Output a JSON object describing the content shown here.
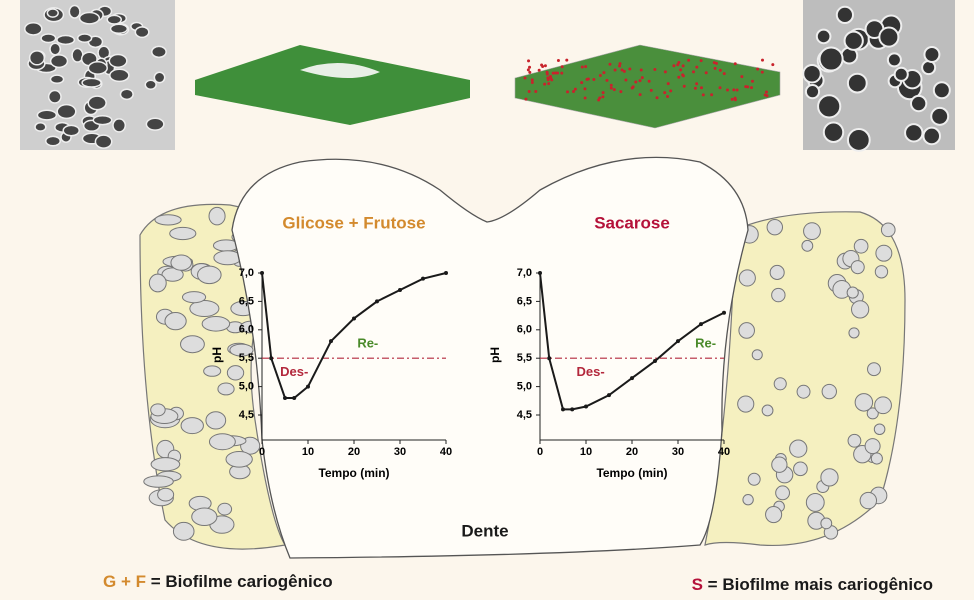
{
  "chart_data": [
    {
      "type": "line",
      "title": "Glicose + Frutose",
      "title_color": "#d38a2e",
      "x_label": "Tempo (min)",
      "y_label": "pH",
      "x": [
        0,
        2,
        5,
        7,
        10,
        15,
        20,
        25,
        30,
        35,
        40
      ],
      "series": [
        {
          "name": "pH",
          "color": "#1a1a1a",
          "values": [
            7.0,
            5.5,
            4.8,
            4.8,
            5.0,
            5.8,
            6.2,
            6.5,
            6.7,
            6.9,
            7.0
          ]
        }
      ],
      "xlim": [
        0,
        40
      ],
      "xticks": [
        0,
        10,
        20,
        30,
        40
      ],
      "ylim": [
        4.06,
        7.0
      ],
      "yticks": [
        {
          "value": 4.5,
          "label": "4,5"
        },
        {
          "value": 5.0,
          "label": "5,0"
        },
        {
          "value": 5.5,
          "label": "5,5"
        },
        {
          "value": 6.0,
          "label": "6,0"
        },
        {
          "value": 6.5,
          "label": "6,5"
        },
        {
          "value": 7.0,
          "label": "7,0"
        }
      ],
      "threshold": 5.5,
      "threshold_color": "#b3283c",
      "annotations": [
        {
          "text": "Des-",
          "x": 7,
          "y": 5.25,
          "color": "#b3283c"
        },
        {
          "text": "Re-",
          "x": 23,
          "y": 5.75,
          "color": "#4a8a2a"
        }
      ]
    },
    {
      "type": "line",
      "title": "Sacarose",
      "title_color": "#b5123a",
      "x_label": "Tempo (min)",
      "y_label": "pH",
      "x": [
        0,
        2,
        5,
        7,
        10,
        15,
        20,
        25,
        30,
        35,
        40
      ],
      "series": [
        {
          "name": "pH",
          "color": "#1a1a1a",
          "values": [
            7.0,
            5.5,
            4.6,
            4.6,
            4.65,
            4.85,
            5.15,
            5.45,
            5.8,
            6.1,
            6.3
          ]
        }
      ],
      "xlim": [
        0,
        40
      ],
      "xticks": [
        0,
        10,
        20,
        30,
        40
      ],
      "ylim": [
        4.06,
        7.0
      ],
      "yticks": [
        {
          "value": 4.5,
          "label": "4,5"
        },
        {
          "value": 5.0,
          "label": "5,0"
        },
        {
          "value": 5.5,
          "label": "5,5"
        },
        {
          "value": 6.0,
          "label": "6,0"
        },
        {
          "value": 6.5,
          "label": "6,5"
        },
        {
          "value": 7.0,
          "label": "7,0"
        }
      ],
      "threshold": 5.5,
      "threshold_color": "#b3283c",
      "annotations": [
        {
          "text": "Des-",
          "x": 11,
          "y": 5.25,
          "color": "#b3283c"
        },
        {
          "text": "Re-",
          "x": 36,
          "y": 5.75,
          "color": "#4a8a2a"
        }
      ]
    }
  ],
  "figure": {
    "tooth_label": "Dente",
    "legend": [
      {
        "key": "G + F",
        "key_color": "#d38a2e",
        "text": "= Biofilme cariogênico"
      },
      {
        "key": "S",
        "key_color": "#b5123a",
        "text": "= Biofilme mais cariogênico"
      }
    ]
  }
}
